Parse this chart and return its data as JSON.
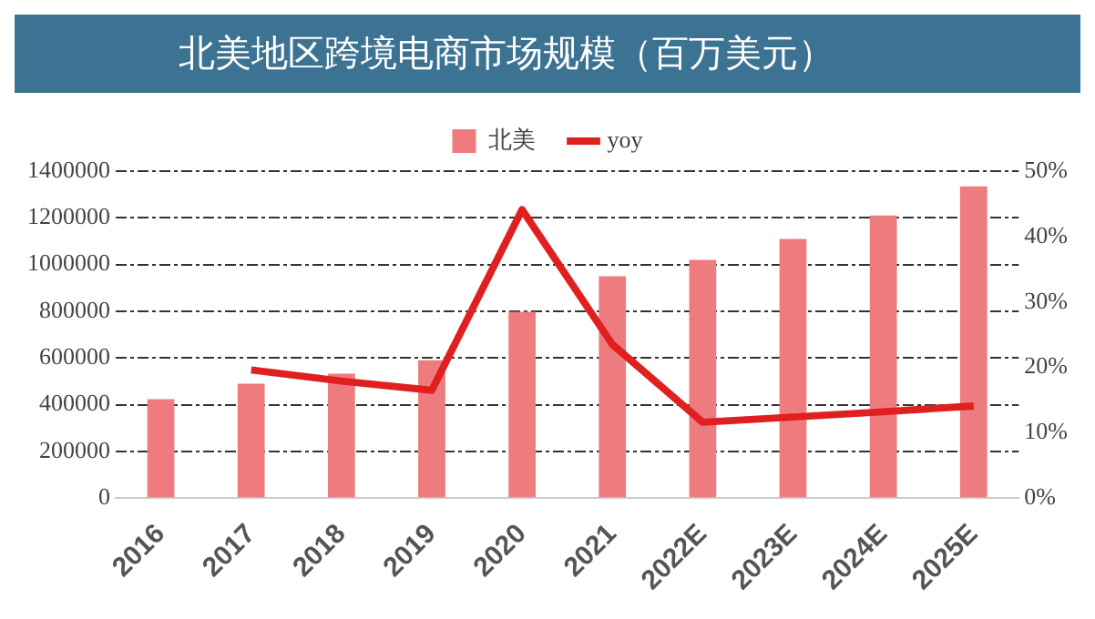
{
  "chart_data": {
    "type": "bar",
    "title": "北美地区跨境电商市场规模（百万美元）",
    "categories": [
      "2016",
      "2017",
      "2018",
      "2019",
      "2020",
      "2021",
      "2022E",
      "2023E",
      "2024E",
      "2025E"
    ],
    "series": [
      {
        "name": "北美",
        "color": "#ee7b7e",
        "values": [
          424000,
          490000,
          533000,
          590000,
          798000,
          950000,
          1020000,
          1110000,
          1210000,
          1335000
        ]
      },
      {
        "name": "yoy",
        "type": "line",
        "axis": "y2",
        "color": "#e02020",
        "marker": "none",
        "values": [
          null,
          19.6,
          17.9,
          16.5,
          44.1,
          23.5,
          11.6,
          12.4,
          13.2,
          14.1
        ]
      }
    ],
    "ylim": [
      0,
      1400000
    ],
    "yticks": [
      0,
      200000,
      400000,
      600000,
      800000,
      1000000,
      1200000,
      1400000
    ],
    "y2lim": [
      0,
      50
    ],
    "y2ticks": [
      {
        "value": 0,
        "label": "0%"
      },
      {
        "value": 10,
        "label": "10%"
      },
      {
        "value": 20,
        "label": "20%"
      },
      {
        "value": 30,
        "label": "30%"
      },
      {
        "value": 40,
        "label": "40%"
      },
      {
        "value": 50,
        "label": "50%"
      }
    ],
    "grid": "y",
    "legend": "top"
  }
}
